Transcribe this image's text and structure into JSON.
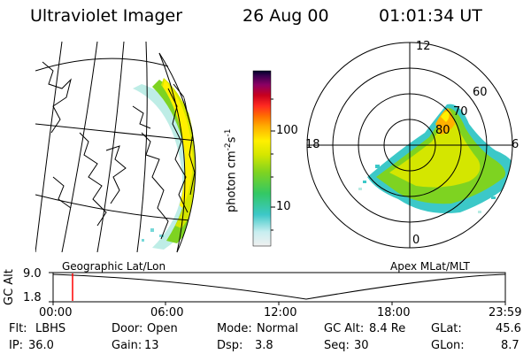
{
  "header": {
    "instrument": "Ultraviolet Imager",
    "date": "26 Aug 00",
    "time": "01:01:34 UT"
  },
  "panels": {
    "left_label": "Geographic Lat/Lon",
    "right_label": "Apex MLat/MLT"
  },
  "colorbar": {
    "label_main": "photon cm",
    "label_exp1": "-2",
    "label_mid": "s",
    "label_exp2": "-1",
    "ticks": [
      "100",
      "10"
    ],
    "scale": "log",
    "colors": [
      "#e6e6e6",
      "#aee8e0",
      "#3cc8c8",
      "#33c864",
      "#7ed321",
      "#c8e600",
      "#fff000",
      "#ffc000",
      "#ff8000",
      "#ff3000",
      "#c8001e",
      "#8c0050",
      "#3c0050",
      "#000028"
    ]
  },
  "polar": {
    "mlt_labels": {
      "top": "12",
      "left": "18",
      "right": "6",
      "bottom": "0"
    },
    "lat_labels": [
      "60",
      "70",
      "80"
    ]
  },
  "timeline": {
    "ylabel": "GC Alt",
    "ymax": "9.0",
    "ymin": "1.8",
    "xticks": [
      "00:00",
      "06:00",
      "12:00",
      "18:00",
      "23:59"
    ],
    "current_time_fraction": 0.07
  },
  "status": {
    "row1": [
      {
        "label": "Flt:",
        "value": "LBHS"
      },
      {
        "label": "Door:",
        "value": "Open"
      },
      {
        "label": "Mode:",
        "value": "Normal"
      },
      {
        "label": "GC Alt:",
        "value": "8.4 Re"
      },
      {
        "label": "GLat:",
        "value": "45.6"
      }
    ],
    "row2": [
      {
        "label": "IP:",
        "value": "36.0"
      },
      {
        "label": "Gain:",
        "value": "13"
      },
      {
        "label": "Dsp:",
        "value": "3.8"
      },
      {
        "label": "Seq:",
        "value": "30"
      },
      {
        "label": "GLon:",
        "value": "8.7"
      }
    ]
  }
}
